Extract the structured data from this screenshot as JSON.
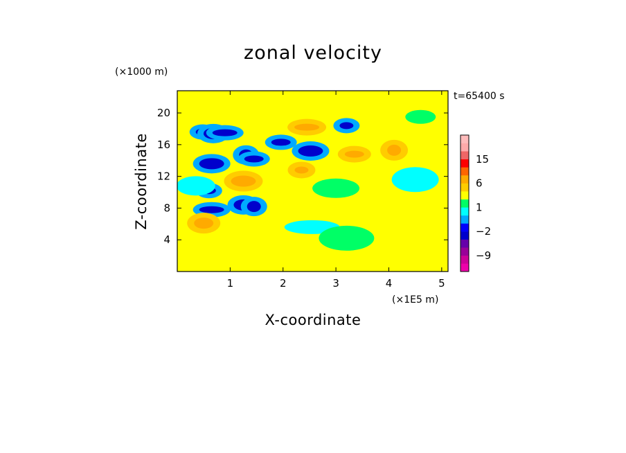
{
  "chart_data": {
    "type": "heatmap",
    "title": "zonal velocity",
    "xlabel": "X-coordinate",
    "ylabel": "Z-coordinate",
    "x_scale_note": "(×1E5 m)",
    "y_scale_note": "(×1000 m)",
    "time_label": "t=65400 s",
    "xlim": [
      0,
      5.12
    ],
    "ylim": [
      0,
      22.8
    ],
    "x_ticks": [
      1,
      2,
      3,
      4,
      5
    ],
    "y_ticks": [
      4,
      8,
      12,
      16,
      20
    ],
    "x_tick_labels": [
      "1",
      "2",
      "3",
      "4",
      "5"
    ],
    "y_tick_labels": [
      "4",
      "8",
      "12",
      "16",
      "20"
    ],
    "colorbar": {
      "levels": [
        -15,
        -12,
        -9,
        -6,
        -4,
        -2,
        -1,
        0,
        1,
        2,
        4,
        6,
        9,
        12,
        15,
        18
      ],
      "labels": [
        "15",
        "6",
        "1",
        "−2",
        "−9"
      ],
      "label_values": [
        15,
        6,
        1,
        -2,
        -9
      ],
      "colors": [
        "#ee00aa",
        "#cc0099",
        "#990099",
        "#6600aa",
        "#0000cc",
        "#0000ff",
        "#00aaff",
        "#00ffff",
        "#00ff66",
        "#ffff00",
        "#ffcc00",
        "#ffaa00",
        "#ff6600",
        "#ff0000",
        "#ee6666",
        "#ffaaaa",
        "#ffbbbb"
      ]
    },
    "background_value": 1.5,
    "features": [
      {
        "x": 0.48,
        "z": 17.6,
        "value": -6
      },
      {
        "x": 0.68,
        "z": 17.4,
        "value": -6
      },
      {
        "x": 0.9,
        "z": 17.5,
        "value": -6
      },
      {
        "x": 1.3,
        "z": 14.7,
        "value": -6
      },
      {
        "x": 1.45,
        "z": 14.2,
        "value": -6
      },
      {
        "x": 0.65,
        "z": 13.6,
        "value": -6
      },
      {
        "x": 0.6,
        "z": 10.2,
        "value": -6
      },
      {
        "x": 1.25,
        "z": 8.4,
        "value": -6
      },
      {
        "x": 0.65,
        "z": 7.8,
        "value": -6
      },
      {
        "x": 1.45,
        "z": 8.2,
        "value": -6
      },
      {
        "x": 1.96,
        "z": 16.3,
        "value": -6
      },
      {
        "x": 2.52,
        "z": 15.2,
        "value": -6
      },
      {
        "x": 3.2,
        "z": 18.4,
        "value": -6
      },
      {
        "x": 0.35,
        "z": 10.8,
        "value": -1
      },
      {
        "x": 4.5,
        "z": 11.6,
        "value": -1
      },
      {
        "x": 2.55,
        "z": 5.6,
        "value": -1
      },
      {
        "x": 3.35,
        "z": 14.8,
        "value": 4
      },
      {
        "x": 1.25,
        "z": 11.4,
        "value": 4
      },
      {
        "x": 2.35,
        "z": 12.8,
        "value": 4
      },
      {
        "x": 0.5,
        "z": 6.1,
        "value": 4
      },
      {
        "x": 2.45,
        "z": 18.2,
        "value": 4
      },
      {
        "x": 4.1,
        "z": 15.3,
        "value": 4
      },
      {
        "x": 3.0,
        "z": 10.5,
        "value": 0.5
      },
      {
        "x": 3.2,
        "z": 4.2,
        "value": 0.5
      },
      {
        "x": 4.6,
        "z": 19.5,
        "value": 0.5
      }
    ]
  }
}
